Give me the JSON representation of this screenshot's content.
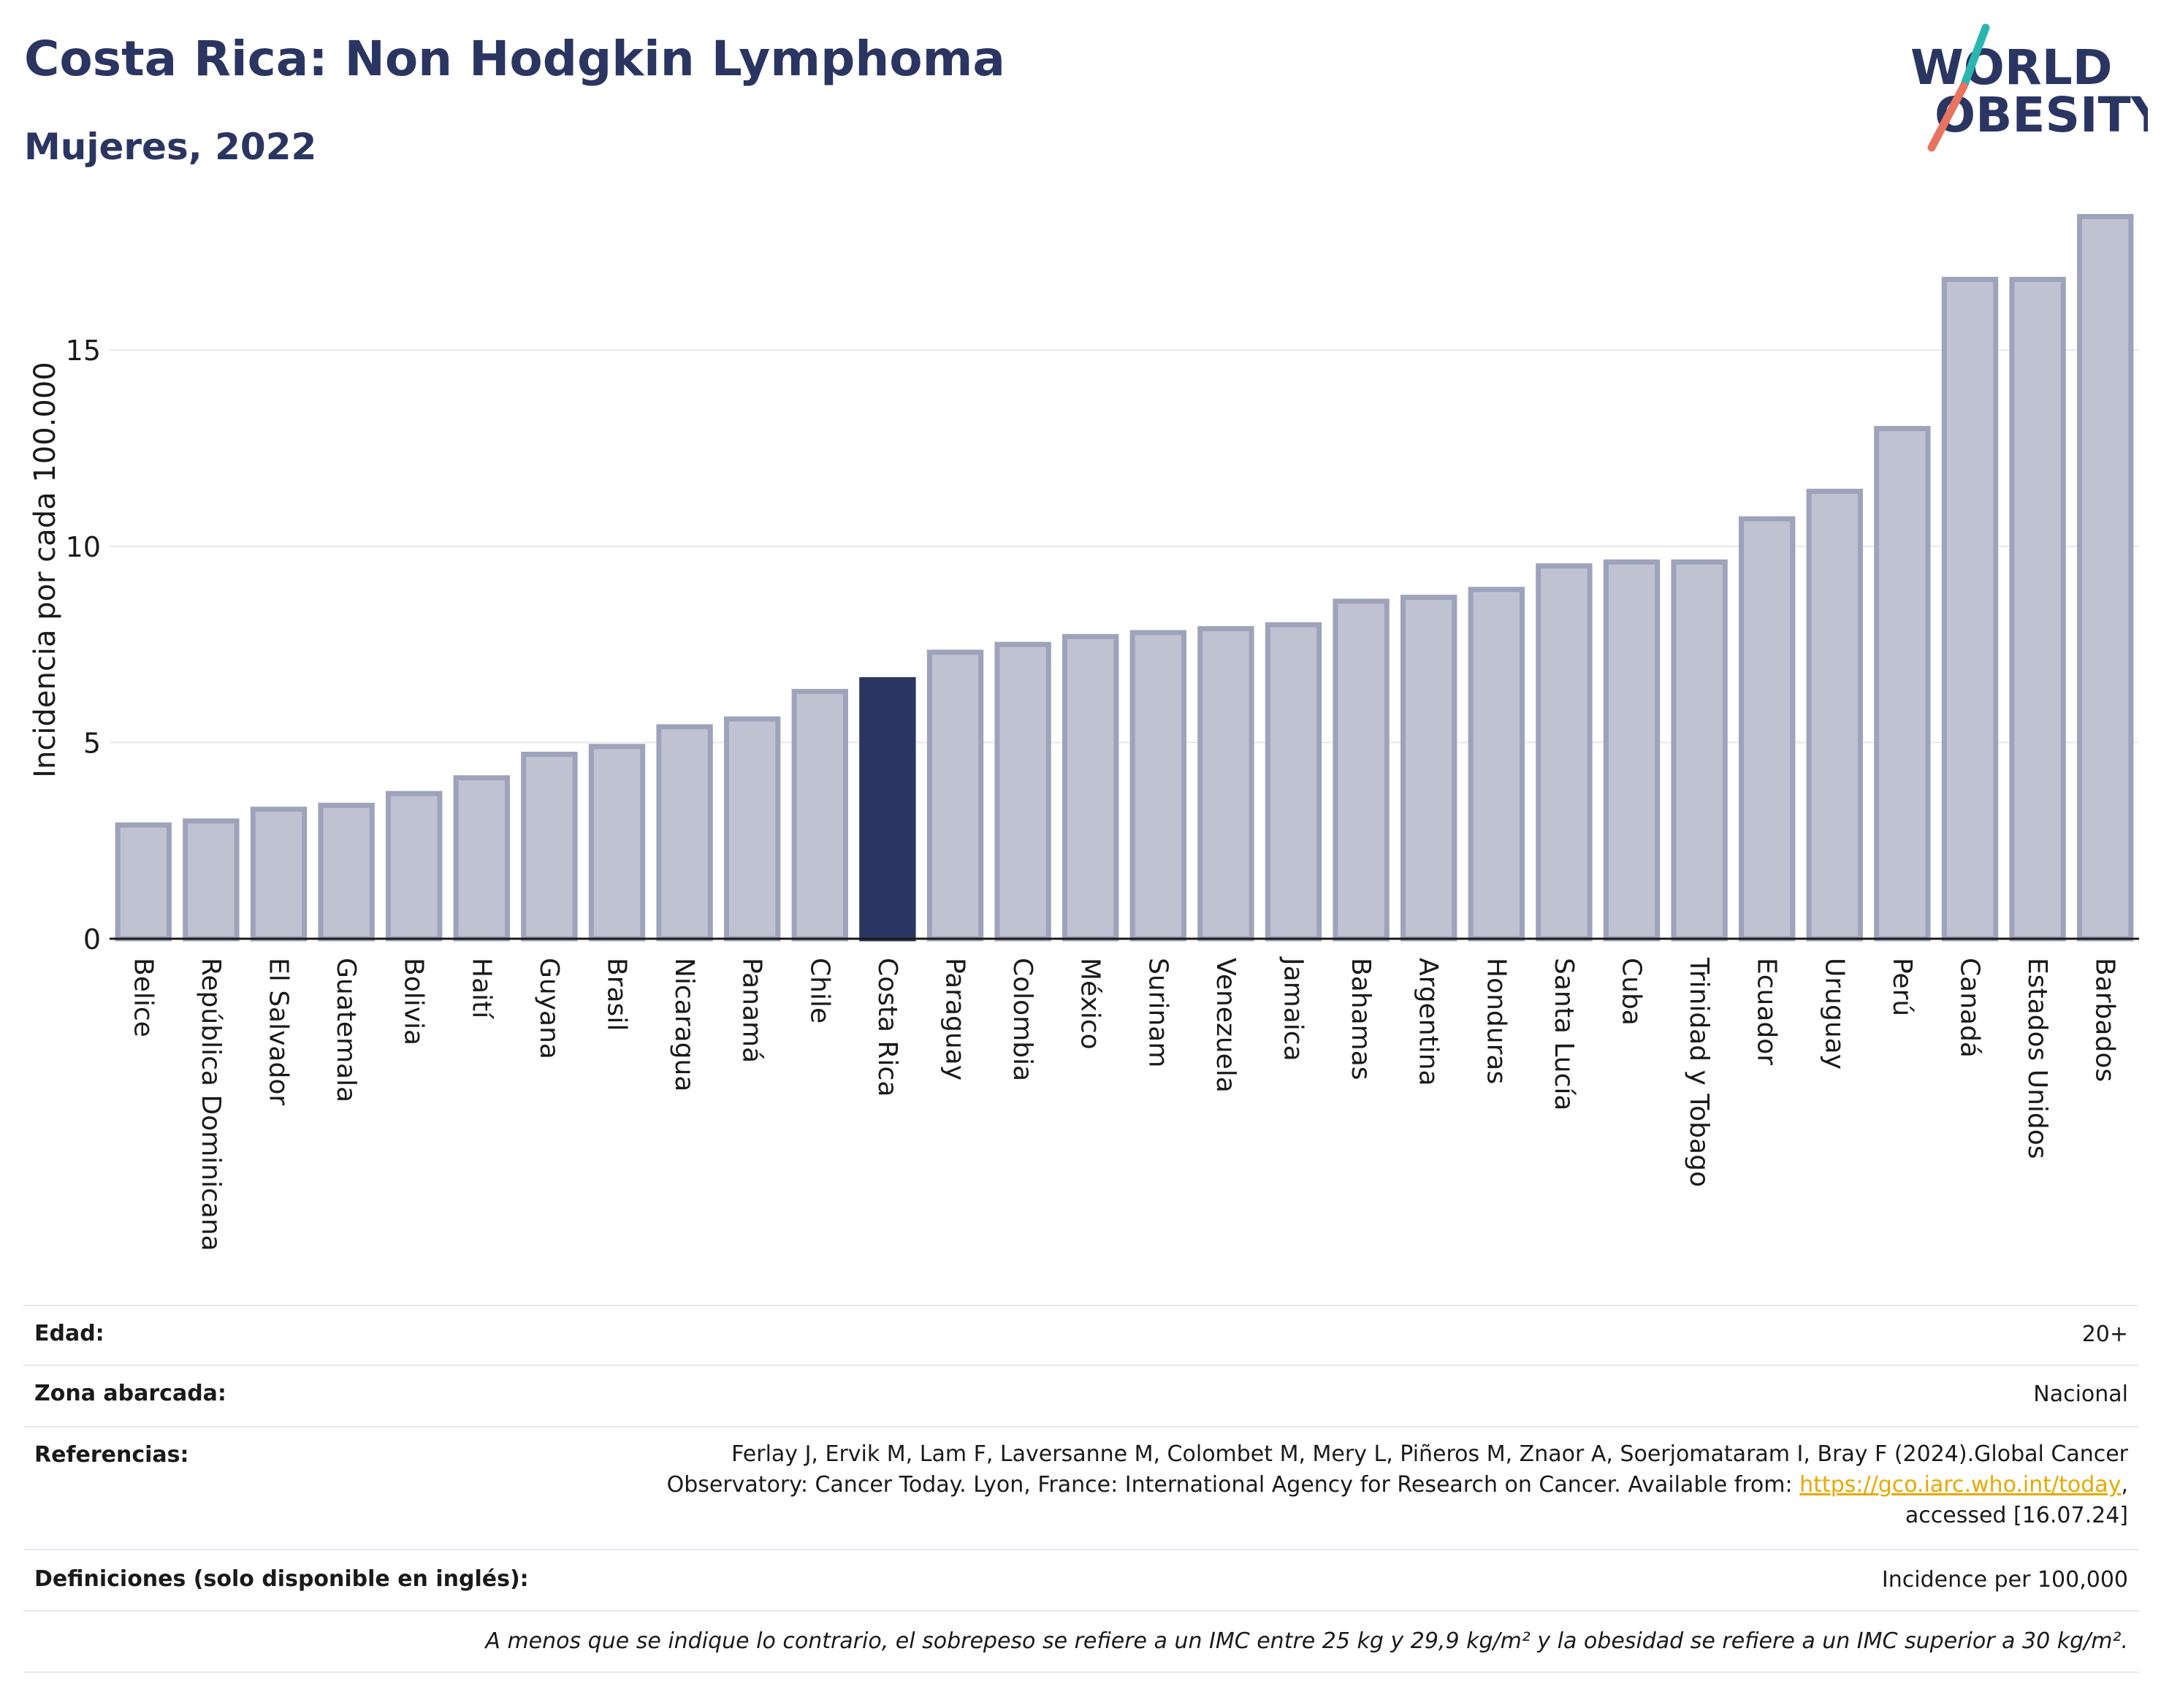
{
  "title": "Costa Rica: Non Hodgkin Lymphoma",
  "subtitle": "Mujeres, 2022",
  "logo": {
    "line1": "WORLD",
    "line2": "OBESITY"
  },
  "colors": {
    "highlight": "#2b3561",
    "bar_fill": "#bfc2d0",
    "bar_stroke": "#9ea3bb",
    "grid": "#e6e8ef",
    "slash_teal": "#2ab6b0",
    "slash_red": "#e8735f"
  },
  "chart_data": {
    "type": "bar",
    "ylabel": "Incidencia por cada 100.000",
    "ylim": [
      0,
      18.8
    ],
    "yticks": [
      0,
      5,
      10,
      15
    ],
    "grid": true,
    "highlight": "Costa Rica",
    "categories": [
      "Belice",
      "República Dominicana",
      "El Salvador",
      "Guatemala",
      "Bolivia",
      "Haití",
      "Guyana",
      "Brasil",
      "Nicaragua",
      "Panamá",
      "Chile",
      "Costa Rica",
      "Paraguay",
      "Colombia",
      "México",
      "Surinam",
      "Venezuela",
      "Jamaica",
      "Bahamas",
      "Argentina",
      "Honduras",
      "Santa Lucía",
      "Cuba",
      "Trinidad y Tobago",
      "Ecuador",
      "Uruguay",
      "Perú",
      "Canadá",
      "Estados Unidos",
      "Barbados"
    ],
    "values": [
      2.9,
      3.0,
      3.3,
      3.4,
      3.7,
      4.1,
      4.7,
      4.9,
      5.4,
      5.6,
      6.3,
      6.6,
      7.3,
      7.5,
      7.7,
      7.8,
      7.9,
      8.0,
      8.6,
      8.7,
      8.9,
      9.5,
      9.6,
      9.6,
      10.7,
      11.4,
      13.0,
      16.8,
      16.8,
      18.4
    ]
  },
  "info": {
    "edad_label": "Edad:",
    "edad_value": "20+",
    "zona_label": "Zona abarcada:",
    "zona_value": "Nacional",
    "ref_label": "Referencias:",
    "ref_line1": "Ferlay J, Ervik M, Lam F, Laversanne M, Colombet M, Mery L, Piñeros M, Znaor A, Soerjomataram I, Bray F (2024).Global Cancer",
    "ref_line2_pre": "Observatory: Cancer Today. Lyon, France: International Agency for Research on Cancer. Available from:",
    "ref_link": "https://gco.iarc.who.int/today",
    "ref_line2_post": ",",
    "ref_line3": "accessed [16.07.24]",
    "def_label": "Definiciones (solo disponible en inglés):",
    "def_value": "Incidence per 100,000",
    "note": "A menos que se indique lo contrario, el sobrepeso se refiere a un IMC entre 25 kg y 29,9 kg/m² y la obesidad se refiere a un IMC superior a 30 kg/m²."
  }
}
